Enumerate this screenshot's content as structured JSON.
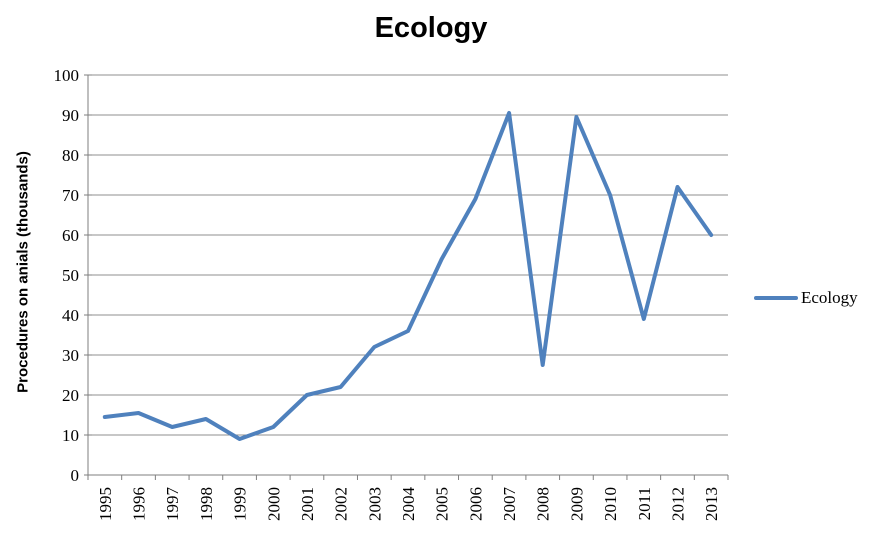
{
  "chart_data": {
    "type": "line",
    "title": "Ecology",
    "xlabel": "",
    "ylabel": "Procedures on anials (thousands)",
    "categories": [
      "1995",
      "1996",
      "1997",
      "1998",
      "1999",
      "2000",
      "2001",
      "2002",
      "2003",
      "2004",
      "2005",
      "2006",
      "2007",
      "2008",
      "2009",
      "2010",
      "2011",
      "2012",
      "2013"
    ],
    "series": [
      {
        "name": "Ecology",
        "color": "#4F81BD",
        "values": [
          14.5,
          15.5,
          12,
          14,
          9,
          12,
          20,
          22,
          32,
          36,
          54,
          69,
          90.5,
          27.5,
          89.5,
          70,
          39,
          72,
          60
        ]
      }
    ],
    "ylim": [
      0,
      100
    ],
    "ytick_step": 10,
    "ytick_labels": [
      "0",
      "10",
      "20",
      "30",
      "40",
      "50",
      "60",
      "70",
      "80",
      "90",
      "100"
    ],
    "grid": true,
    "legend_position": "right",
    "colors": {
      "gridline": "#8F8F8F",
      "axis": "#7F7F7F",
      "text": "#000000",
      "background": "#FFFFFF"
    }
  }
}
